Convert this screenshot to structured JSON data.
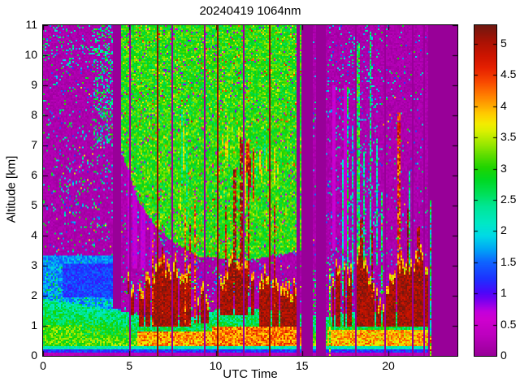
{
  "chart_data": {
    "type": "heatmap",
    "title": "20240419 1064nm",
    "xlabel": "UTC Time",
    "ylabel": "Altitude [km]",
    "x_range": [
      0,
      24
    ],
    "y_range": [
      0,
      11
    ],
    "x_tick_values": [
      0,
      5,
      10,
      15,
      20
    ],
    "x_tick_labels": [
      "0",
      "5",
      "10",
      "15",
      "20"
    ],
    "y_tick_values": [
      0,
      1,
      2,
      3,
      4,
      5,
      6,
      7,
      8,
      9,
      10,
      11
    ],
    "y_tick_labels": [
      "0",
      "1",
      "2",
      "3",
      "4",
      "5",
      "6",
      "7",
      "8",
      "9",
      "10",
      "11"
    ],
    "grid": false,
    "legend_position": "colorbar-right",
    "colorbar": {
      "range": [
        0,
        5.3
      ],
      "tick_values": [
        0,
        0.5,
        1,
        1.5,
        2,
        2.5,
        3,
        3.5,
        4,
        4.5,
        5
      ],
      "tick_labels": [
        "0",
        "0.5",
        "1",
        "1.5",
        "2",
        "2.5",
        "3",
        "3.5",
        "4",
        "4.5",
        "5"
      ]
    },
    "colormap_stops": [
      [
        0.0,
        "#980098"
      ],
      [
        0.32,
        "#BC00BE"
      ],
      [
        0.58,
        "#CF00CF"
      ],
      [
        0.7,
        "#C300DC"
      ],
      [
        0.8,
        "#9B00E8"
      ],
      [
        0.92,
        "#6B00F2"
      ],
      [
        1.02,
        "#4A08FA"
      ],
      [
        1.22,
        "#1E30FF"
      ],
      [
        1.5,
        "#0E64FF"
      ],
      [
        1.7,
        "#00A4F6"
      ],
      [
        1.92,
        "#00DAE6"
      ],
      [
        2.12,
        "#00E8C6"
      ],
      [
        2.4,
        "#00E694"
      ],
      [
        2.6,
        "#00E058"
      ],
      [
        2.82,
        "#00D822"
      ],
      [
        3.02,
        "#20D400"
      ],
      [
        3.2,
        "#58DC00"
      ],
      [
        3.4,
        "#9CE800"
      ],
      [
        3.6,
        "#DAF000"
      ],
      [
        3.72,
        "#F4EC00"
      ],
      [
        3.88,
        "#FFCC00"
      ],
      [
        4.0,
        "#FFAC00"
      ],
      [
        4.2,
        "#FF7800"
      ],
      [
        4.4,
        "#F84800"
      ],
      [
        4.62,
        "#E62000"
      ],
      [
        4.82,
        "#CC1400"
      ],
      [
        5.05,
        "#A81204"
      ],
      [
        5.3,
        "#701810"
      ]
    ],
    "render": {
      "seed": 12345,
      "nx": 255,
      "nz": 204
    },
    "scene": {
      "data_end_t": 22.35,
      "end_streak": {
        "t": [
          22.38,
          22.52
        ],
        "z_top": 5.2
      },
      "wide_gaps": [
        [
          14.93,
          15.6
        ],
        [
          15.82,
          16.42
        ]
      ],
      "partial_gap": {
        "t": [
          4.05,
          4.52
        ],
        "z_above": 1.55
      },
      "thin_gaps": [
        5.03,
        7.52,
        9.35,
        11.65,
        14.78,
        18.08,
        19.85,
        21.45,
        22.08
      ],
      "brown_lines": [
        6.62,
        10.08,
        13.15
      ],
      "sliver_fills": [
        {
          "t": [
            15.6,
            15.82
          ],
          "z": [
            0,
            0.9
          ],
          "base": 1.8,
          "noise": 0.7
        },
        {
          "t": [
            15.6,
            15.82
          ],
          "z": [
            0.9,
            2.6
          ],
          "base": 0.15,
          "noise": 0.2,
          "speckle_prob": 0.3,
          "speckle": [
            2.2,
            3.2
          ]
        }
      ],
      "night": {
        "base": 0.05,
        "noise": 0.24,
        "speckle_prob": 0.09,
        "speckle": [
          1.2,
          3.1
        ],
        "bright_speckle_prob": 0.05,
        "bright_speckle": [
          3.3,
          4.2
        ]
      },
      "late_night_fade": {
        "from_t": 16.42,
        "prob_start": 0.065,
        "prob_end": 0.015
      },
      "dense_patches": [
        {
          "t": [
            2.9,
            4.55
          ],
          "z": [
            7.0,
            11
          ],
          "prob": 0.38,
          "val": [
            1.6,
            3.2
          ]
        },
        {
          "t": [
            0,
            2.9
          ],
          "z": [
            9.6,
            11
          ],
          "prob": 0.16,
          "val": [
            1.5,
            2.9
          ]
        },
        {
          "t": [
            16.45,
            19.6
          ],
          "z": [
            0,
            11
          ],
          "prob": 0.1,
          "val": [
            1.2,
            2.6
          ]
        }
      ],
      "day": {
        "t": [
          4.55,
          14.93
        ],
        "base": 2.55,
        "noise": 0.85,
        "green_base_pts": [
          [
            4.55,
            6.8
          ],
          [
            5.5,
            5.2
          ],
          [
            6.5,
            4.3
          ],
          [
            7.5,
            3.8
          ],
          [
            9.0,
            3.3
          ],
          [
            12.0,
            3.2
          ],
          [
            14.93,
            3.5
          ]
        ],
        "dark_speckle_prob": 0.035,
        "red_speckle_prob": 0.018
      },
      "pink_columns": [
        {
          "t": [
            4.55,
            6.6
          ],
          "z": [
            2.9,
            6.4
          ],
          "col_prob": 0.45,
          "val": [
            0.45,
            0.8
          ]
        },
        {
          "t": [
            16.45,
            17.7
          ],
          "z": [
            3.5,
            9.0
          ],
          "col_prob": 0.4,
          "val": [
            0.45,
            0.75
          ]
        }
      ],
      "bl_top_pts": [
        [
          0,
          1.9
        ],
        [
          2,
          1.7
        ],
        [
          3.5,
          1.55
        ],
        [
          5,
          1.45
        ],
        [
          6,
          1.3
        ],
        [
          8,
          1.2
        ],
        [
          10,
          1.5
        ],
        [
          12,
          1.6
        ],
        [
          14.5,
          1.45
        ],
        [
          16.5,
          1.3
        ],
        [
          18,
          1.45
        ],
        [
          20,
          1.5
        ],
        [
          22.3,
          1.35
        ]
      ],
      "aerosol": {
        "v_bottom": 3.3,
        "v_slope": 1.15,
        "noise": 0.45
      },
      "yellow_layers": [
        {
          "t": [
            5.5,
            9.8
          ],
          "z": [
            0.25,
            0.8
          ],
          "val": 4.05,
          "noise": 0.5
        },
        {
          "t": [
            9.8,
            14.93
          ],
          "z": [
            0.22,
            0.95
          ],
          "val": 4.2,
          "noise": 0.45
        },
        {
          "t": [
            16.5,
            22.3
          ],
          "z": [
            0.18,
            0.85
          ],
          "val": 3.95,
          "noise": 0.5
        },
        {
          "t": [
            0,
            2.3
          ],
          "z": [
            0.2,
            1.0
          ],
          "val": 3.1,
          "noise": 0.45
        },
        {
          "t": [
            1.2,
            2.3
          ],
          "z": [
            0.42,
            0.54
          ],
          "val": 3.9,
          "noise": 0.3
        }
      ],
      "surface_strips": [
        {
          "z": [
            0,
            0.13
          ],
          "base": 0.18,
          "noise": 0.18
        },
        {
          "z": [
            0.13,
            0.22
          ],
          "base": 1.0,
          "noise": 0.5
        },
        {
          "z": [
            0.22,
            0.32
          ],
          "base": 2.0,
          "noise": 0.45
        }
      ],
      "early": {
        "t_max": 4.55,
        "blue_patch": {
          "t": [
            1.1,
            4.0
          ],
          "z": [
            1.95,
            3.05
          ],
          "base": 1.05,
          "noise": 0.5
        },
        "mid_band": {
          "z_max": 3.35,
          "base": 1.35,
          "noise": 0.55,
          "speckle_max_prob": 0.3,
          "speckle": [
            2.0,
            2.9
          ]
        }
      },
      "clouds": [
        {
          "t": [
            4.72,
            5.02
          ],
          "zb": 2.05,
          "top_pts": [
            [
              4.72,
              2.5
            ],
            [
              5.02,
              2.75
            ]
          ],
          "hole_prob": 0.25
        },
        {
          "t": [
            5.1,
            5.5
          ],
          "zb": 1.35,
          "top_pts": [
            [
              5.1,
              2.2
            ],
            [
              5.5,
              2.95
            ]
          ],
          "hole_prob": 0.3
        },
        {
          "t": [
            5.6,
            8.6
          ],
          "zb": 0.95,
          "top_pts": [
            [
              5.6,
              1.9
            ],
            [
              6.3,
              2.6
            ],
            [
              7.0,
              2.95
            ],
            [
              7.8,
              2.8
            ],
            [
              8.6,
              2.35
            ]
          ],
          "hole_prob": 0.07
        },
        {
          "t": [
            8.8,
            9.7
          ],
          "zb": 1.1,
          "top_pts": [
            [
              8.8,
              2.1
            ],
            [
              9.3,
              1.9
            ],
            [
              9.7,
              1.7
            ]
          ],
          "hole_prob": 0.2
        },
        {
          "t": [
            10.25,
            12.2
          ],
          "zb": 1.35,
          "top_pts": [
            [
              10.25,
              2.2
            ],
            [
              10.8,
              2.9
            ],
            [
              11.5,
              3.1
            ],
            [
              12.2,
              2.6
            ]
          ],
          "hole_prob": 0.1
        },
        {
          "t": [
            12.4,
            14.78
          ],
          "zb": 0.95,
          "top_pts": [
            [
              12.4,
              2.3
            ],
            [
              13.2,
              2.6
            ],
            [
              14.0,
              2.2
            ],
            [
              14.78,
              2.0
            ]
          ],
          "hole_prob": 0.12
        },
        {
          "t": [
            16.75,
            22.3
          ],
          "zb": 0.95,
          "top_pts": [
            [
              16.75,
              2.4
            ],
            [
              17.2,
              3.0
            ],
            [
              17.8,
              2.55
            ],
            [
              18.4,
              3.4
            ],
            [
              19.0,
              2.2
            ],
            [
              19.4,
              1.6
            ],
            [
              19.9,
              1.85
            ],
            [
              20.3,
              2.6
            ],
            [
              20.9,
              3.0
            ],
            [
              21.4,
              2.8
            ],
            [
              21.9,
              3.2
            ],
            [
              22.3,
              2.4
            ]
          ],
          "hole_prob": 0.1
        }
      ],
      "cloud": {
        "val": 4.8,
        "noise": 0.5,
        "ragged": 0.7,
        "fringe": 0.28,
        "fringe_val": 3.6,
        "fringe_noise": 1.2
      },
      "spikes": [
        {
          "t": 6.35,
          "w": 0.12,
          "z": [
            1.0,
            3.9
          ],
          "val": 4.6
        },
        {
          "t": 6.9,
          "w": 0.1,
          "z": [
            1.0,
            3.6
          ],
          "val": 4.9
        },
        {
          "t": 8.2,
          "w": 0.1,
          "z": [
            1.0,
            4.9
          ],
          "val": 4.4
        },
        {
          "t": 8.5,
          "w": 0.1,
          "z": [
            1.0,
            4.4
          ],
          "val": 4.8
        },
        {
          "t": 8.82,
          "w": 0.1,
          "z": [
            1.0,
            5.2
          ],
          "val": 4.3
        },
        {
          "t": 10.6,
          "w": 0.12,
          "z": [
            2.0,
            5.0
          ],
          "val": 4.9
        },
        {
          "t": 11.1,
          "w": 0.16,
          "z": [
            2.0,
            6.2
          ],
          "val": 5.1
        },
        {
          "t": 11.52,
          "w": 0.18,
          "z": [
            2.0,
            7.3
          ],
          "val": 5.15
        },
        {
          "t": 11.9,
          "w": 0.16,
          "z": [
            2.0,
            7.0
          ],
          "val": 5.0
        },
        {
          "t": 13.42,
          "w": 0.1,
          "z": [
            1.5,
            5.0
          ],
          "val": 4.7
        },
        {
          "t": 18.42,
          "w": 0.16,
          "z": [
            2.5,
            4.6
          ],
          "val": 5.1
        },
        {
          "t": 19.02,
          "w": 0.1,
          "z": [
            2.0,
            4.3
          ],
          "val": 5.05
        },
        {
          "t": 20.58,
          "w": 0.16,
          "z": [
            3.0,
            8.1
          ],
          "val": 4.5
        },
        {
          "t": 21.12,
          "w": 0.16,
          "z": [
            2.5,
            4.9
          ],
          "val": 5.1
        },
        {
          "t": 21.76,
          "w": 0.14,
          "z": [
            2.5,
            4.3
          ],
          "val": 5.05
        }
      ],
      "night_streaks": [
        {
          "t": 16.6,
          "w": 0.12,
          "z": [
            0,
            2.9
          ],
          "val": 3.3
        },
        {
          "t": 17.35,
          "w": 0.1,
          "z": [
            2,
            6.5
          ],
          "val": 2.3
        },
        {
          "t": 17.62,
          "w": 0.12,
          "z": [
            2,
            9.0
          ],
          "val": 2.6
        },
        {
          "t": 17.95,
          "w": 0.1,
          "z": [
            2,
            7.6
          ],
          "val": 2.2
        },
        {
          "t": 18.25,
          "w": 0.12,
          "z": [
            2,
            10.4
          ],
          "val": 2.8
        },
        {
          "t": 18.6,
          "w": 0.1,
          "z": [
            2,
            6.8
          ],
          "val": 2.4
        },
        {
          "t": 18.95,
          "w": 0.12,
          "z": [
            3,
            10.8
          ],
          "val": 2.5
        },
        {
          "t": 19.3,
          "w": 0.1,
          "z": [
            3,
            7.2
          ],
          "val": 2.3
        },
        {
          "t": 19.62,
          "w": 0.1,
          "z": [
            2,
            5.4
          ],
          "val": 2.6
        },
        {
          "t": 21.25,
          "w": 0.1,
          "z": [
            3,
            6.2
          ],
          "val": 2.4
        }
      ],
      "streak_jitter": 1.2,
      "streak_gap_prob": 0.22,
      "cirrus": [
        {
          "t": [
            10.4,
            11.1
          ],
          "z": [
            5.8,
            7.3
          ],
          "density": 0.55,
          "val": [
            2.5,
            4.6
          ]
        },
        {
          "t": [
            11.3,
            12.2
          ],
          "z": [
            5.6,
            7.7
          ],
          "density": 0.8,
          "val": [
            3.2,
            5.2
          ]
        },
        {
          "t": [
            12.3,
            13.6
          ],
          "z": [
            5.8,
            7.2
          ],
          "density": 0.45,
          "val": [
            2.5,
            4.2
          ]
        },
        {
          "t": [
            9.0,
            9.5
          ],
          "z": [
            4.3,
            5.6
          ],
          "density": 0.5,
          "val": [
            2.2,
            3.4
          ]
        },
        {
          "t": [
            7.9,
            8.35
          ],
          "z": [
            4.6,
            7.9
          ],
          "density": 0.45,
          "val": [
            2.4,
            4.0
          ]
        }
      ]
    }
  }
}
